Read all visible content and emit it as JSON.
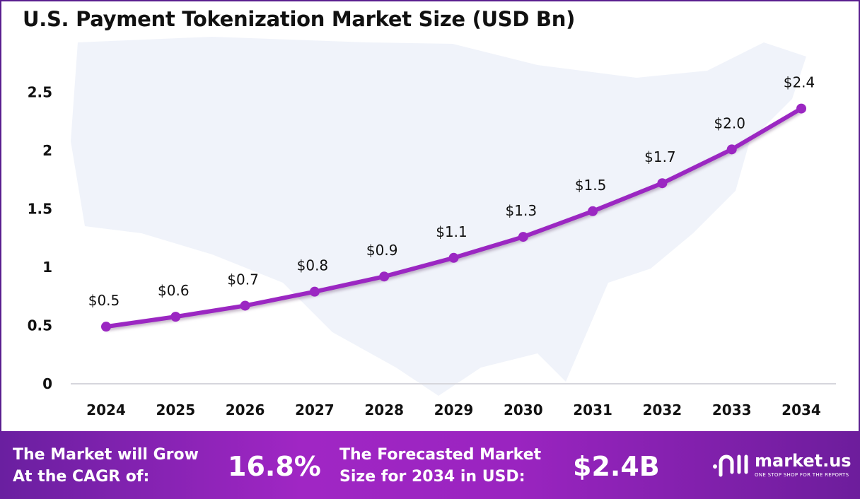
{
  "chart_data": {
    "type": "line",
    "title": "U.S. Payment Tokenization Market Size (USD Bn)",
    "categories": [
      "2024",
      "2025",
      "2026",
      "2027",
      "2028",
      "2029",
      "2030",
      "2031",
      "2032",
      "2033",
      "2034"
    ],
    "values": [
      0.49,
      0.575,
      0.67,
      0.79,
      0.92,
      1.08,
      1.26,
      1.48,
      1.72,
      2.01,
      2.36
    ],
    "data_labels": [
      "$0.5",
      "$0.6",
      "$0.7",
      "$0.8",
      "$0.9",
      "$1.1",
      "$1.3",
      "$1.5",
      "$1.7",
      "$2.0",
      "$2.4"
    ],
    "yticks": [
      "0",
      "0.5",
      "1",
      "1.5",
      "2",
      "2.5"
    ],
    "ylim": [
      0,
      2.5
    ],
    "grid": false,
    "line_color": "#9b27c2",
    "background": "US map silhouette"
  },
  "banner": {
    "cagr_label_1": "The Market will Grow",
    "cagr_label_2": "At the CAGR of:",
    "cagr_value": "16.8%",
    "forecast_label_1": "The Forecasted Market",
    "forecast_label_2": "Size for 2034 in USD:",
    "forecast_value": "$2.4B",
    "brand": "market.us",
    "brand_tagline": "ONE STOP SHOP FOR THE REPORTS"
  }
}
